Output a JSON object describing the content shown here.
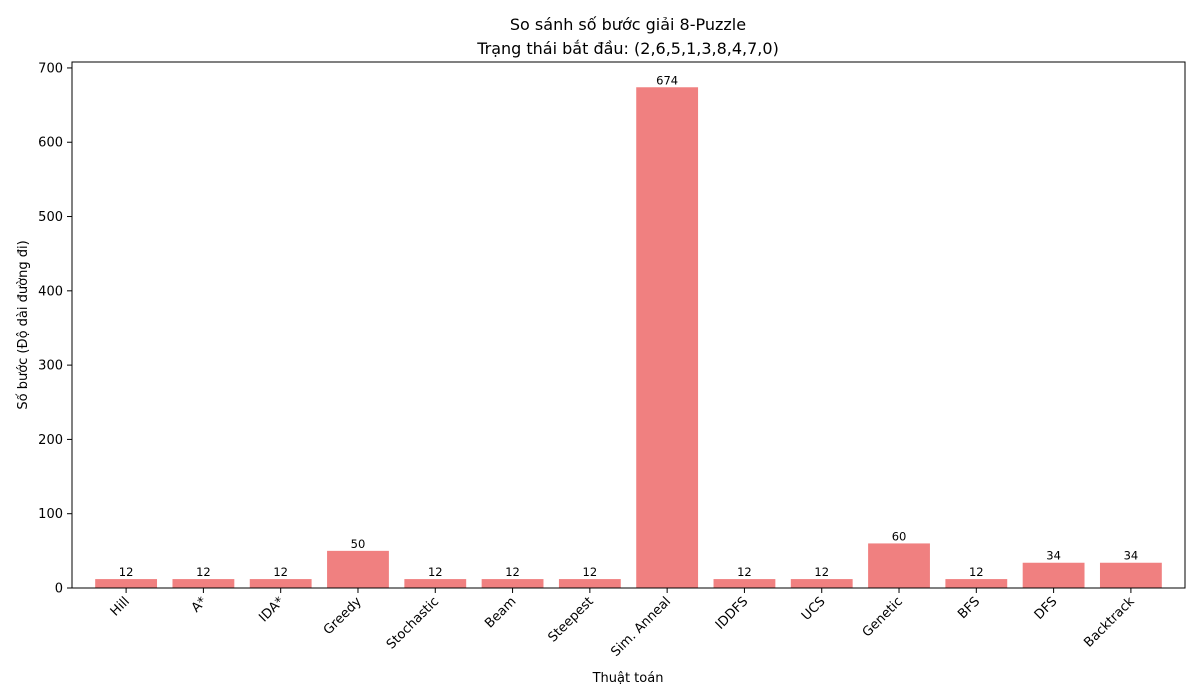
{
  "chart_data": {
    "type": "bar",
    "title": "So sánh số bước giải 8-Puzzle",
    "subtitle": "Trạng thái bắt đầu: (2,6,5,1,3,8,4,7,0)",
    "xlabel": "Thuật toán",
    "ylabel": "Số bước (Độ dài đường đi)",
    "categories": [
      "Hill",
      "A*",
      "IDA*",
      "Greedy",
      "Stochastic",
      "Beam",
      "Steepest",
      "Sim. Anneal",
      "IDDFS",
      "UCS",
      "Genetic",
      "BFS",
      "DFS",
      "Backtrack"
    ],
    "values": [
      12,
      12,
      12,
      50,
      12,
      12,
      12,
      674,
      12,
      12,
      60,
      12,
      34,
      34
    ],
    "ylim": [
      0,
      708
    ],
    "yticks": [
      0,
      100,
      200,
      300,
      400,
      500,
      600,
      700
    ],
    "bar_color": "#f08080",
    "grid": false,
    "legend": "none"
  }
}
